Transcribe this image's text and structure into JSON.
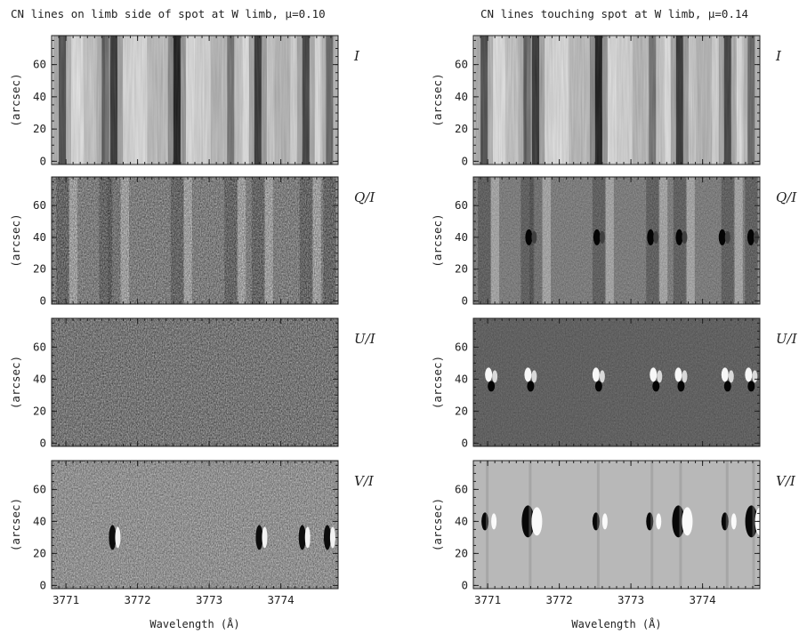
{
  "chart_data": [
    {
      "type": "heatmap",
      "title": "CN lines on limb side of spot at W limb, μ=0.10",
      "xlabel": "Wavelength (Å)",
      "ylabel": "(arcsec)",
      "xlim": [
        3770.8,
        3774.8
      ],
      "ylim": [
        -2,
        78
      ],
      "x_ticks": [
        "3771",
        "3772",
        "3773",
        "3774"
      ],
      "y_ticks": [
        "0",
        "20",
        "40",
        "60"
      ],
      "panels": [
        {
          "label": "I",
          "colormap": "grayscale",
          "features": [
            {
              "wavelength": 3770.95,
              "intensity": 0.3
            },
            {
              "wavelength": 3771.55,
              "intensity": 0.35
            },
            {
              "wavelength": 3771.67,
              "intensity": 0.2
            },
            {
              "wavelength": 3772.55,
              "intensity": 0.1
            },
            {
              "wavelength": 3773.3,
              "intensity": 0.45
            },
            {
              "wavelength": 3773.68,
              "intensity": 0.2
            },
            {
              "wavelength": 3774.35,
              "intensity": 0.25
            },
            {
              "wavelength": 3774.68,
              "intensity": 0.4
            }
          ]
        },
        {
          "label": "Q/I",
          "colormap": "grayscale",
          "features": []
        },
        {
          "label": "U/I",
          "colormap": "grayscale",
          "features": []
        },
        {
          "label": "V/I",
          "colormap": "grayscale",
          "features": []
        }
      ]
    },
    {
      "type": "heatmap",
      "title": "CN lines touching spot at W limb, μ=0.14",
      "xlabel": "Wavelength (Å)",
      "ylabel": "(arcsec)",
      "xlim": [
        3770.8,
        3774.8
      ],
      "ylim": [
        -2,
        78
      ],
      "x_ticks": [
        "3771",
        "3772",
        "3773",
        "3774"
      ],
      "y_ticks": [
        "0",
        "20",
        "40",
        "60"
      ],
      "panels": [
        {
          "label": "I",
          "colormap": "grayscale",
          "features": [
            {
              "wavelength": 3770.95,
              "intensity": 0.3
            },
            {
              "wavelength": 3771.55,
              "intensity": 0.35
            },
            {
              "wavelength": 3771.67,
              "intensity": 0.2
            },
            {
              "wavelength": 3772.55,
              "intensity": 0.1
            },
            {
              "wavelength": 3773.3,
              "intensity": 0.45
            },
            {
              "wavelength": 3773.68,
              "intensity": 0.2
            },
            {
              "wavelength": 3774.35,
              "intensity": 0.25
            },
            {
              "wavelength": 3774.68,
              "intensity": 0.4
            }
          ]
        },
        {
          "label": "Q/I",
          "colormap": "grayscale",
          "features": []
        },
        {
          "label": "U/I",
          "colormap": "grayscale",
          "features": []
        },
        {
          "label": "V/I",
          "colormap": "grayscale",
          "features": []
        }
      ]
    }
  ]
}
